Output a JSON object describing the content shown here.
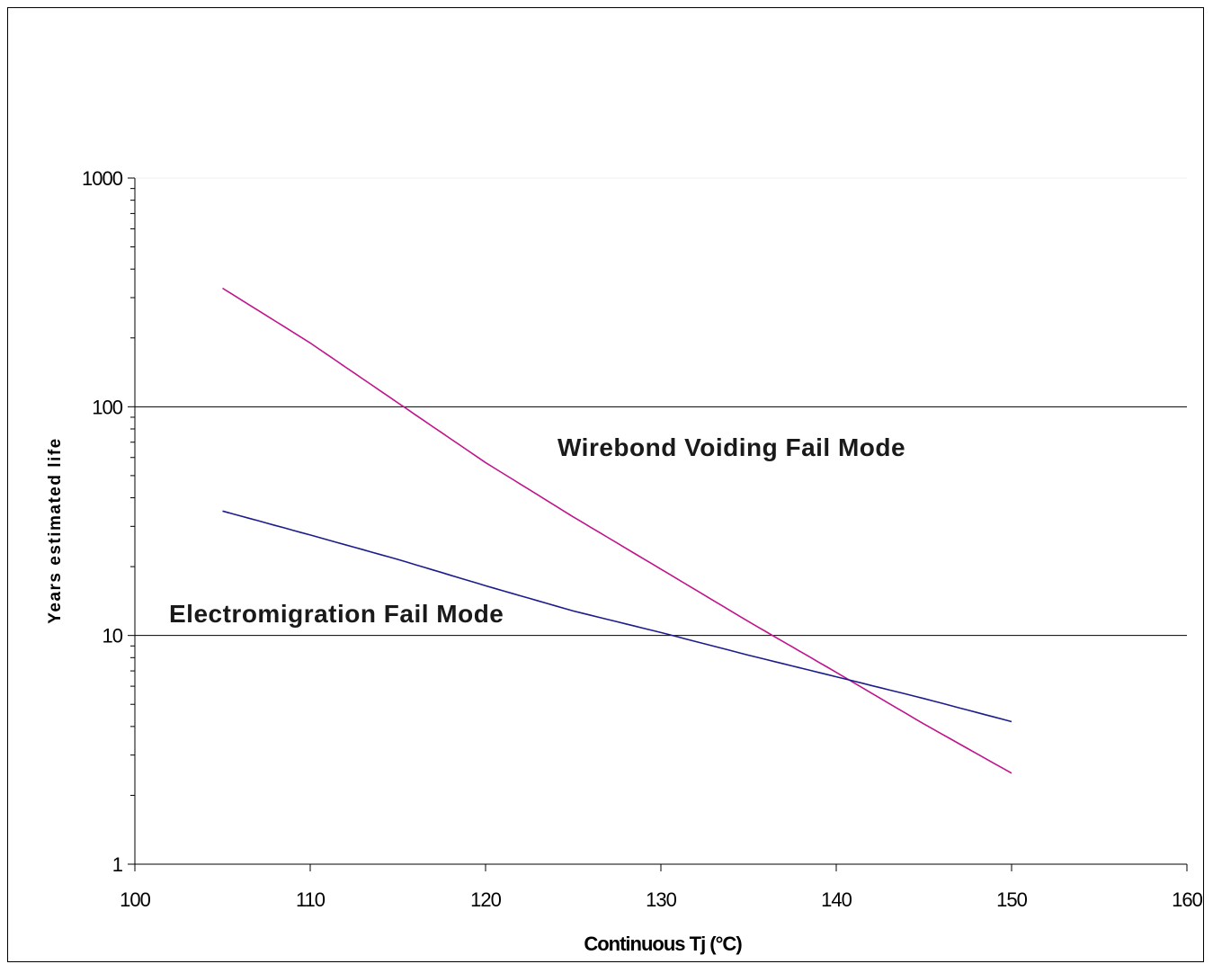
{
  "chart_data": {
    "type": "line",
    "title": "",
    "xlabel": "Continuous Tj (°C)",
    "ylabel": "Years estimated life",
    "xlim": [
      100,
      160
    ],
    "ylim": [
      1,
      1000
    ],
    "yscale": "log",
    "x_ticks": [
      "100",
      "110",
      "120",
      "130",
      "140",
      "150",
      "160"
    ],
    "y_ticks": [
      "1",
      "10",
      "100",
      "1000"
    ],
    "grid": "horizontal major gridlines at 10 and 100",
    "legend": "none",
    "annotations": [
      {
        "text": "Wirebond Voiding Fail Mode",
        "x": 126,
        "y": 65
      },
      {
        "text": "Electromigration Fail Mode",
        "x": 102,
        "y": 12
      }
    ],
    "series": [
      {
        "color": "#c0148c",
        "x": [
          105,
          110,
          115,
          120,
          125,
          130,
          135,
          140,
          145,
          150
        ],
        "y": [
          330,
          190,
          104,
          57,
          33,
          19.5,
          11.5,
          6.9,
          4.1,
          2.5
        ]
      },
      {
        "color": "#1c1c8c",
        "x": [
          105,
          110,
          115,
          120,
          125,
          130,
          135,
          140,
          145,
          150
        ],
        "y": [
          35,
          27.5,
          21.5,
          16.5,
          12.8,
          10.3,
          8.2,
          6.6,
          5.3,
          4.2
        ]
      }
    ]
  }
}
